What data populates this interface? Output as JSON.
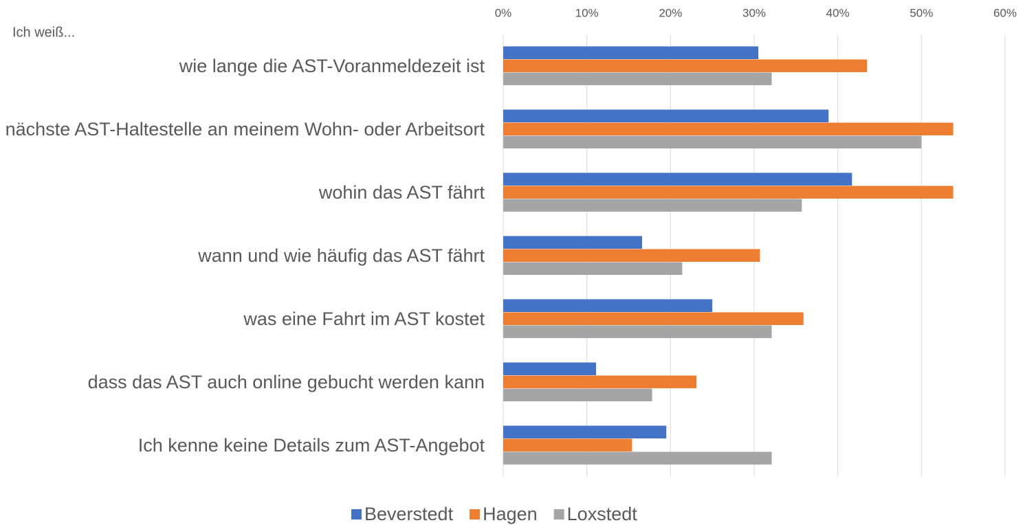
{
  "chart_data": {
    "type": "hbar",
    "annotation": "Ich weiß...",
    "categories": [
      "wie lange die AST-Voranmeldezeit ist",
      "nächste AST-Haltestelle an meinem Wohn- oder Arbeitsort",
      "wohin das AST fährt",
      "wann und wie häufig das AST fährt",
      "was eine Fahrt im AST kostet",
      "dass das AST auch online gebucht werden kann",
      "Ich kenne keine Details zum AST-Angebot"
    ],
    "series": [
      {
        "name": "Beverstedt",
        "color": "#4472c4",
        "values": [
          30.5,
          38.9,
          41.7,
          16.6,
          25.0,
          11.1,
          19.5
        ]
      },
      {
        "name": "Hagen",
        "color": "#ed7d31",
        "values": [
          43.5,
          53.8,
          53.8,
          30.7,
          35.9,
          23.1,
          15.4
        ]
      },
      {
        "name": "Loxstedt",
        "color": "#a5a5a5",
        "values": [
          32.1,
          50.0,
          35.7,
          21.4,
          32.1,
          17.8,
          32.1
        ]
      }
    ],
    "xlim": [
      0,
      60
    ],
    "xticks": [
      {
        "value": 0,
        "label": "0%"
      },
      {
        "value": 10,
        "label": "10%"
      },
      {
        "value": 20,
        "label": "20%"
      },
      {
        "value": 30,
        "label": "30%"
      },
      {
        "value": 40,
        "label": "40%"
      },
      {
        "value": 50,
        "label": "50%"
      },
      {
        "value": 60,
        "label": "60%"
      }
    ],
    "grid": true
  }
}
